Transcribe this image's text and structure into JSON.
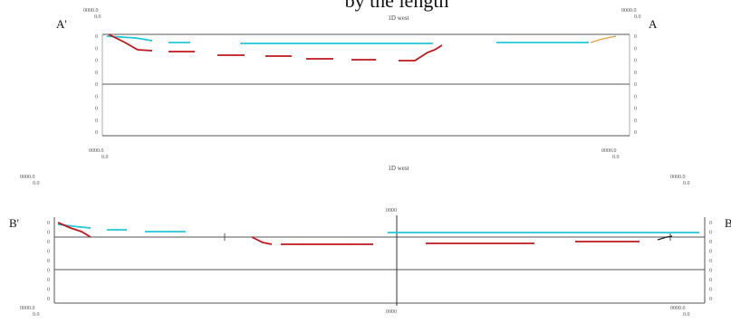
{
  "title_partial": "by the length",
  "profile_a": {
    "end_left": "A'",
    "end_right": "A",
    "center_label": "1D west",
    "corner_top_left": [
      "0000.0",
      "0.0"
    ],
    "corner_top_right": [
      "0000.0",
      "0.0"
    ],
    "corner_bottom_left": [
      "0000.0",
      "0.0"
    ],
    "corner_bottom_right": [
      "0000.0",
      "0.0"
    ],
    "tick_labels_left": [
      "0",
      "0",
      "0",
      "0",
      "0",
      "0",
      "0",
      "0",
      "0"
    ],
    "tick_labels_right": [
      "0",
      "0",
      "0",
      "0",
      "0",
      "0",
      "0",
      "0",
      "0"
    ],
    "colors": {
      "frame": "#555555",
      "cyan": "#22c8d8",
      "red": "#c0161c",
      "orange": "#e89a40"
    }
  },
  "profile_b": {
    "end_left": "B'",
    "end_right": "B",
    "center_label": "1D west",
    "marker_label": "0000",
    "marker_bottom_label": "0000",
    "corner_top_left": [
      "0000.0",
      "0.0"
    ],
    "corner_top_right": [
      "0000.0",
      "0.0"
    ],
    "corner_bottom_left": [
      "0000.0",
      "0.0"
    ],
    "corner_bottom_right": [
      "0000.0",
      "0.0"
    ],
    "tick_labels_left": [
      "0",
      "0",
      "0",
      "0",
      "0",
      "0",
      "0",
      "0",
      "0"
    ],
    "tick_labels_right": [
      "0",
      "0",
      "0",
      "0",
      "0",
      "0",
      "0",
      "0",
      "0"
    ],
    "colors": {
      "frame": "#555555",
      "cyan": "#22c8d8",
      "red": "#c0161c",
      "dark": "#222222"
    }
  }
}
